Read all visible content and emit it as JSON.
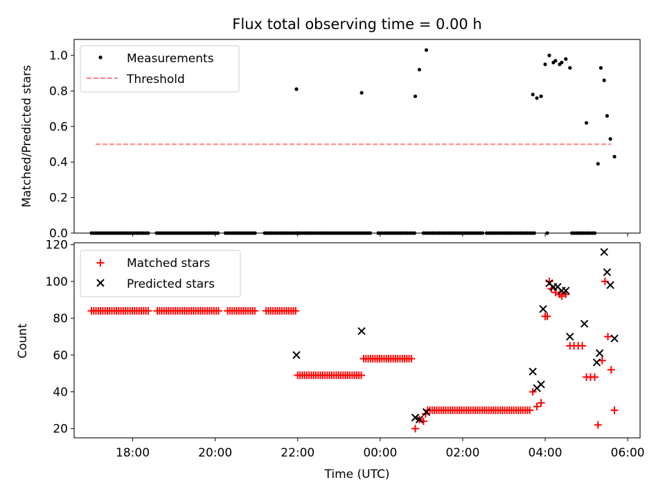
{
  "chart_data": [
    {
      "type": "scatter",
      "title": "Flux total observing time = 0.00 h",
      "xlabel": "",
      "ylabel": "Matched/Predicted stars",
      "xlim": [
        16.58,
        30.3
      ],
      "ylim": [
        0,
        1.09
      ],
      "yticks": [
        0.0,
        0.2,
        0.4,
        0.6,
        0.8,
        1.0
      ],
      "ytick_labels": [
        "0.0",
        "0.2",
        "0.4",
        "0.6",
        "0.8",
        "1.0"
      ],
      "legend_position": "upper left",
      "legend": {
        "measurements": "Measurements",
        "threshold": "Threshold"
      },
      "threshold": {
        "name": "Threshold",
        "y": 0.5,
        "x_start": 17.1,
        "x_end": 29.6,
        "color": "#ff8080"
      },
      "series": [
        {
          "name": "Measurements",
          "color": "#000000",
          "zero_runs": [
            [
              17.0,
              18.4
            ],
            [
              18.58,
              20.1
            ],
            [
              20.25,
              21.0
            ],
            [
              21.2,
              21.97
            ],
            [
              22.0,
              23.8
            ],
            [
              23.95,
              24.85
            ],
            [
              25.05,
              26.48
            ],
            [
              26.58,
              27.75
            ],
            [
              28.65,
              29.25
            ]
          ],
          "points": [
            [
              21.97,
              0.81
            ],
            [
              23.55,
              0.79
            ],
            [
              24.85,
              0.77
            ],
            [
              24.95,
              0.92
            ],
            [
              25.12,
              1.03
            ],
            [
              27.7,
              0.78
            ],
            [
              27.8,
              0.76
            ],
            [
              27.9,
              0.77
            ],
            [
              28.0,
              0.95
            ],
            [
              28.1,
              1.0
            ],
            [
              28.2,
              0.96
            ],
            [
              28.25,
              0.97
            ],
            [
              28.35,
              0.95
            ],
            [
              28.4,
              0.96
            ],
            [
              28.5,
              0.98
            ],
            [
              28.6,
              0.93
            ],
            [
              29.0,
              0.62
            ],
            [
              29.28,
              0.39
            ],
            [
              29.35,
              0.93
            ],
            [
              29.43,
              0.86
            ],
            [
              29.5,
              0.66
            ],
            [
              29.58,
              0.53
            ],
            [
              29.68,
              0.43
            ],
            [
              28.05,
              0.0
            ]
          ]
        }
      ]
    },
    {
      "type": "scatter",
      "title": "",
      "xlabel": "Time (UTC)",
      "ylabel": "Count",
      "xlim": [
        16.58,
        30.3
      ],
      "ylim": [
        15,
        121
      ],
      "xticks": [
        18,
        20,
        22,
        24,
        26,
        28,
        30
      ],
      "xtick_labels": [
        "18:00",
        "20:00",
        "22:00",
        "00:00",
        "02:00",
        "04:00",
        "06:00"
      ],
      "yticks": [
        20,
        40,
        60,
        80,
        100,
        120
      ],
      "ytick_labels": [
        "20",
        "40",
        "60",
        "80",
        "100",
        "120"
      ],
      "legend_position": "upper left",
      "legend": {
        "matched": "Matched stars",
        "predicted": "Predicted stars"
      },
      "series": [
        {
          "name": "Matched stars",
          "color": "#ff0000",
          "runs": [
            {
              "from": 17.0,
              "to": 21.97,
              "y": 84,
              "gaps": [
                [
                  18.4,
                  18.58
                ],
                [
                  20.1,
                  20.25
                ],
                [
                  21.0,
                  21.2
                ]
              ]
            },
            {
              "from": 22.0,
              "to": 23.55,
              "y": 49
            },
            {
              "from": 23.6,
              "to": 24.8,
              "y": 58
            },
            {
              "from": 25.15,
              "to": 27.65,
              "y": 30
            }
          ],
          "points": [
            [
              24.85,
              20
            ],
            [
              24.95,
              25
            ],
            [
              25.05,
              24
            ],
            [
              25.1,
              28
            ],
            [
              27.7,
              40
            ],
            [
              27.8,
              32
            ],
            [
              27.9,
              34
            ],
            [
              28.0,
              81
            ],
            [
              28.05,
              81
            ],
            [
              28.1,
              100
            ],
            [
              28.15,
              96
            ],
            [
              28.25,
              94
            ],
            [
              28.35,
              93
            ],
            [
              28.4,
              92
            ],
            [
              28.5,
              93
            ],
            [
              28.6,
              65
            ],
            [
              28.7,
              65
            ],
            [
              28.8,
              65
            ],
            [
              28.9,
              65
            ],
            [
              29.0,
              48
            ],
            [
              29.1,
              48
            ],
            [
              29.2,
              48
            ],
            [
              29.28,
              22
            ],
            [
              29.38,
              57
            ],
            [
              29.45,
              100
            ],
            [
              29.52,
              70
            ],
            [
              29.6,
              52
            ],
            [
              29.68,
              30
            ]
          ]
        },
        {
          "name": "Predicted stars",
          "color": "#000000",
          "points": [
            [
              21.97,
              60
            ],
            [
              23.55,
              73
            ],
            [
              24.85,
              26
            ],
            [
              24.95,
              25
            ],
            [
              25.12,
              29
            ],
            [
              27.7,
              51
            ],
            [
              27.8,
              42
            ],
            [
              27.9,
              44
            ],
            [
              27.95,
              85
            ],
            [
              28.1,
              99
            ],
            [
              28.2,
              97
            ],
            [
              28.3,
              97
            ],
            [
              28.4,
              95
            ],
            [
              28.5,
              95
            ],
            [
              28.6,
              70
            ],
            [
              28.95,
              77
            ],
            [
              29.25,
              56
            ],
            [
              29.32,
              61
            ],
            [
              29.43,
              116
            ],
            [
              29.5,
              105
            ],
            [
              29.58,
              98
            ],
            [
              29.68,
              69
            ]
          ]
        }
      ]
    }
  ]
}
